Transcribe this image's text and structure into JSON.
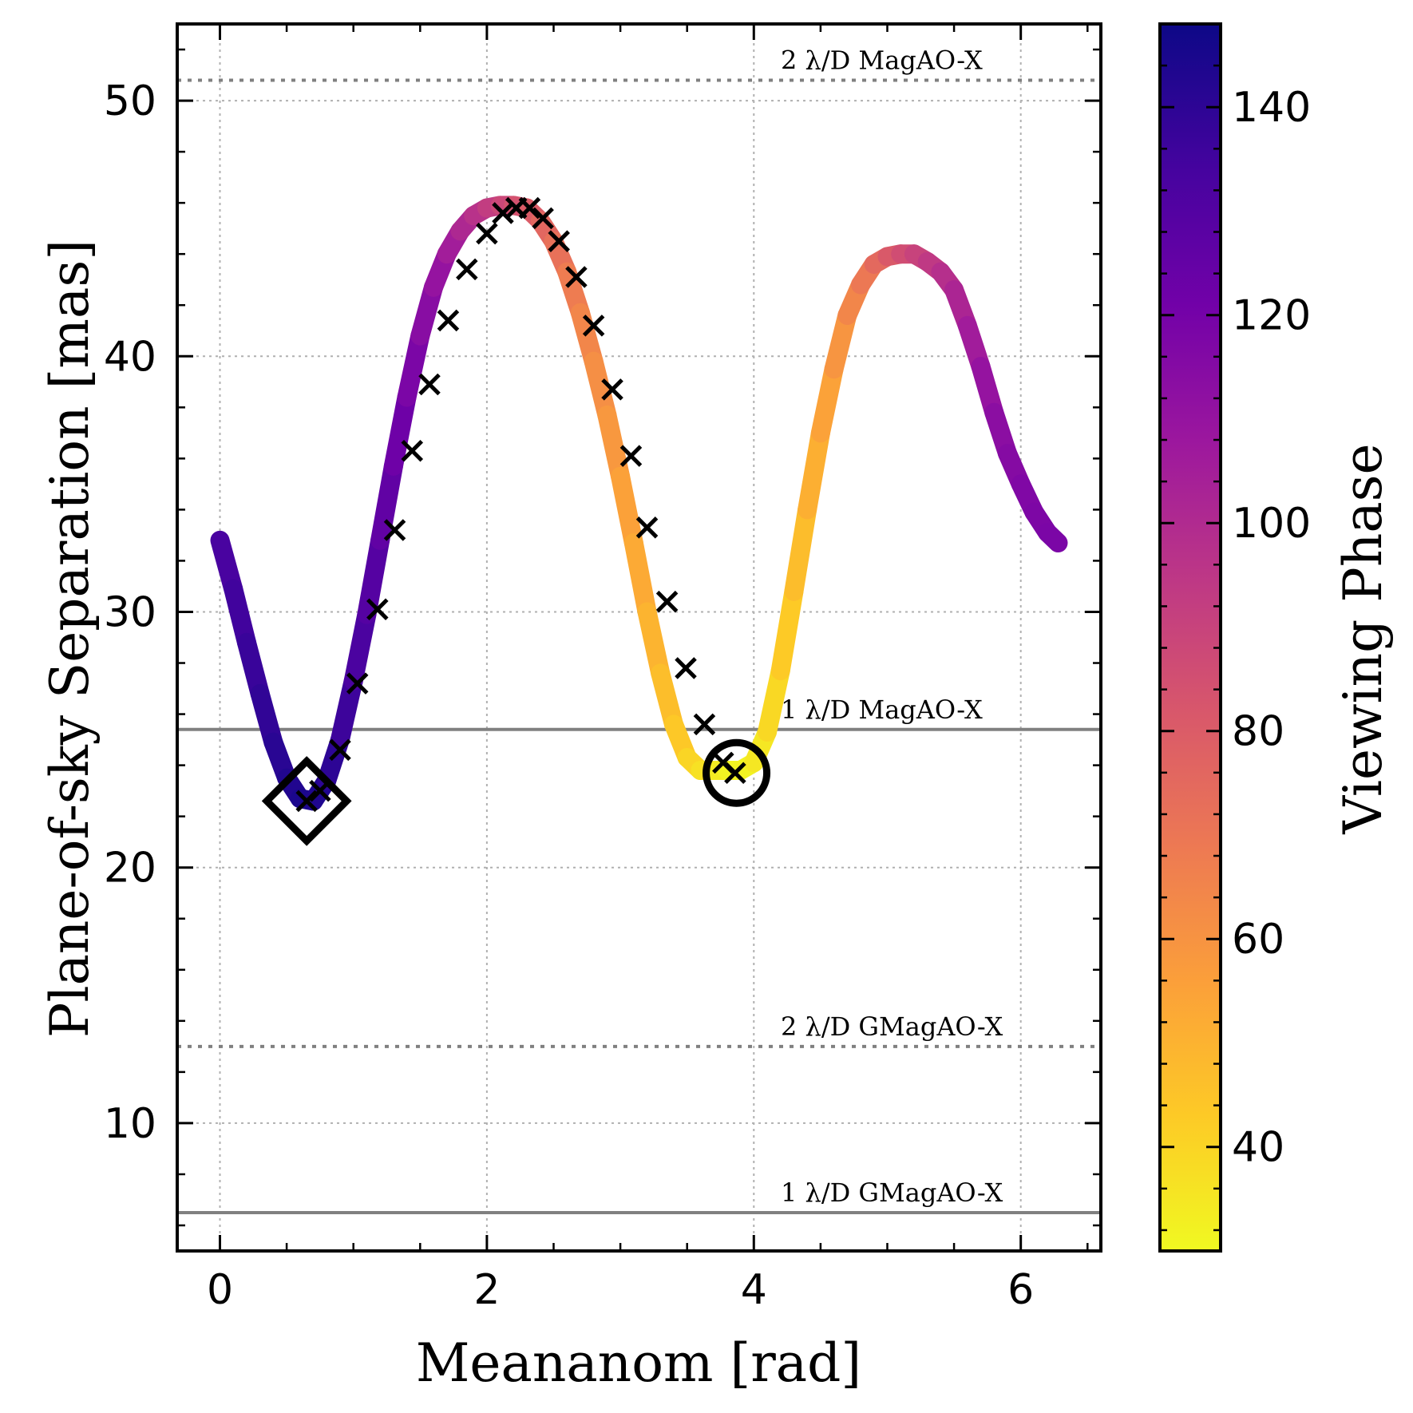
{
  "chart_data": {
    "type": "line",
    "xlabel": "Meananom [rad]",
    "ylabel": "Plane-of-sky Separation [mas]",
    "xlim": [
      -0.32,
      6.6
    ],
    "ylim": [
      5,
      53
    ],
    "x_ticks": [
      0,
      2,
      4,
      6
    ],
    "y_ticks": [
      10,
      20,
      30,
      40,
      50
    ],
    "grid": true,
    "curve": {
      "x": [
        0.0,
        0.1,
        0.2,
        0.3,
        0.4,
        0.5,
        0.6,
        0.7,
        0.8,
        0.9,
        1.0,
        1.1,
        1.2,
        1.3,
        1.4,
        1.5,
        1.6,
        1.7,
        1.8,
        1.9,
        2.0,
        2.1,
        2.2,
        2.3,
        2.4,
        2.5,
        2.6,
        2.7,
        2.8,
        2.9,
        3.0,
        3.1,
        3.2,
        3.3,
        3.4,
        3.5,
        3.6,
        3.7,
        3.8,
        3.9,
        4.0,
        4.1,
        4.2,
        4.3,
        4.4,
        4.5,
        4.6,
        4.7,
        4.8,
        4.9,
        5.0,
        5.1,
        5.2,
        5.3,
        5.4,
        5.5,
        5.6,
        5.7,
        5.8,
        5.9,
        6.0,
        6.1,
        6.2,
        6.28
      ],
      "y": [
        32.8,
        30.9,
        28.8,
        26.8,
        24.9,
        23.5,
        22.7,
        22.6,
        23.4,
        25.0,
        27.3,
        29.9,
        32.8,
        35.7,
        38.4,
        40.8,
        42.7,
        44.0,
        44.9,
        45.5,
        45.8,
        45.9,
        45.9,
        45.8,
        45.3,
        44.5,
        43.3,
        41.7,
        39.8,
        37.7,
        35.3,
        32.7,
        30.0,
        27.6,
        25.6,
        24.3,
        23.8,
        23.8,
        23.8,
        23.8,
        24.1,
        25.3,
        27.7,
        30.8,
        34.0,
        37.0,
        39.5,
        41.6,
        42.8,
        43.6,
        43.9,
        44.0,
        44.0,
        43.7,
        43.3,
        42.6,
        41.2,
        39.6,
        37.8,
        36.2,
        35.0,
        33.9,
        33.1,
        32.7
      ],
      "viewing_phase": [
        132,
        134,
        136,
        138,
        140,
        142,
        144,
        145,
        142,
        138,
        134,
        131,
        128,
        124,
        120,
        116,
        112,
        108,
        103,
        99,
        95,
        90,
        86,
        82,
        78,
        74,
        70,
        66,
        63,
        60,
        57,
        54,
        51,
        48,
        45,
        42,
        38,
        35,
        32,
        31,
        33,
        37,
        41,
        45,
        49,
        53,
        57,
        62,
        67,
        72,
        78,
        84,
        88,
        92,
        96,
        100,
        104,
        108,
        112,
        114,
        116,
        117,
        118,
        118
      ]
    },
    "markers": {
      "x": [
        0.65,
        0.75,
        0.9,
        1.03,
        1.18,
        1.31,
        1.44,
        1.57,
        1.71,
        1.85,
        2.0,
        2.12,
        2.22,
        2.32,
        2.42,
        2.54,
        2.67,
        2.8,
        2.94,
        3.08,
        3.2,
        3.35,
        3.49,
        3.63,
        3.77,
        3.86
      ],
      "y": [
        22.6,
        23.0,
        24.6,
        27.2,
        30.1,
        33.2,
        36.3,
        38.9,
        41.4,
        43.4,
        44.8,
        45.6,
        45.8,
        45.8,
        45.4,
        44.5,
        43.1,
        41.2,
        38.7,
        36.1,
        33.3,
        30.4,
        27.8,
        25.6,
        24.1,
        23.7
      ]
    },
    "highlights": [
      {
        "shape": "diamond",
        "x": 0.65,
        "y": 22.6
      },
      {
        "shape": "circle",
        "x": 3.87,
        "y": 23.7
      }
    ],
    "reference_lines": [
      {
        "label": "2 λ/D MagAO-X",
        "y": 50.8,
        "style": "dotted"
      },
      {
        "label": "1 λ/D MagAO-X",
        "y": 25.4,
        "style": "solid"
      },
      {
        "label": "2 λ/D GMagAO-X",
        "y": 13.0,
        "style": "dotted"
      },
      {
        "label": "1 λ/D GMagAO-X",
        "y": 6.5,
        "style": "solid"
      }
    ],
    "colorbar": {
      "label": "Viewing Phase",
      "colormap": "plasma_r",
      "range": [
        30,
        148
      ],
      "ticks": [
        40,
        60,
        80,
        100,
        120,
        140
      ]
    },
    "colors": {
      "reference_line": "#808080",
      "grid": "#b0b0b0",
      "marker": "#000000"
    }
  }
}
